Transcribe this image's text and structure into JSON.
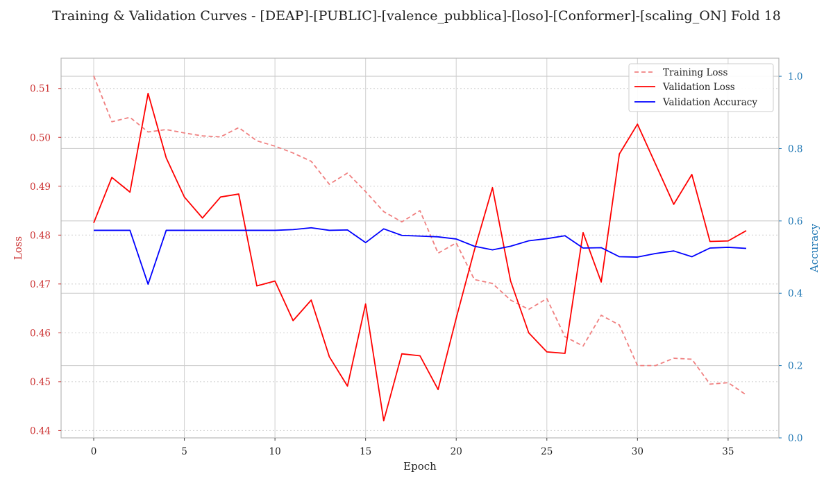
{
  "chart_data": {
    "type": "line",
    "title": "Training & Validation Curves - [DEAP]-[PUBLIC]-[valence_pubblica]-[loso]-[Conformer]-[scaling_ON] Fold 18",
    "xlabel": "Epoch",
    "ylabel_left": "Loss",
    "ylabel_right": "Accuracy",
    "xlim": [
      -1.8,
      37.8
    ],
    "ylim_left": [
      0.4385,
      0.5162
    ],
    "ylim_right": [
      0.0,
      1.05
    ],
    "x_ticks": [
      0,
      5,
      10,
      15,
      20,
      25,
      30,
      35
    ],
    "y_ticks_left": [
      0.44,
      0.45,
      0.46,
      0.47,
      0.48,
      0.49,
      0.5,
      0.51
    ],
    "y_ticks_right": [
      0.0,
      0.2,
      0.4,
      0.6,
      0.8,
      1.0
    ],
    "grid": true,
    "legend_position": "top-right",
    "colors": {
      "training_loss": "#f08080",
      "validation_loss": "#ff0000",
      "validation_accuracy": "#0000ff",
      "left_axis": "#cc3333",
      "right_axis": "#1f77b4"
    },
    "x": [
      0,
      1,
      2,
      3,
      4,
      5,
      6,
      7,
      8,
      9,
      10,
      11,
      12,
      13,
      14,
      15,
      16,
      17,
      18,
      19,
      20,
      21,
      22,
      23,
      24,
      25,
      26,
      27,
      28,
      29,
      30,
      31,
      32,
      33,
      34,
      35,
      36
    ],
    "series": [
      {
        "name": "Training Loss",
        "axis": "left",
        "style": "dashed",
        "values": [
          0.5126,
          0.5032,
          0.5041,
          0.5011,
          0.5016,
          0.5009,
          0.5003,
          0.5001,
          0.502,
          0.4993,
          0.4982,
          0.4968,
          0.4951,
          0.4904,
          0.4927,
          0.4889,
          0.4848,
          0.4827,
          0.485,
          0.4763,
          0.4784,
          0.4709,
          0.4701,
          0.4667,
          0.4648,
          0.467,
          0.4592,
          0.4573,
          0.4636,
          0.4616,
          0.4533,
          0.4533,
          0.4548,
          0.4546,
          0.4495,
          0.4498,
          0.4473
        ]
      },
      {
        "name": "Validation Loss",
        "axis": "left",
        "style": "solid",
        "values": [
          0.4825,
          0.4918,
          0.4888,
          0.509,
          0.4958,
          0.4878,
          0.4835,
          0.4878,
          0.4884,
          0.4696,
          0.4706,
          0.4625,
          0.4667,
          0.4551,
          0.4491,
          0.4659,
          0.442,
          0.4557,
          0.4553,
          0.4484,
          0.463,
          0.4769,
          0.4897,
          0.4706,
          0.46,
          0.4561,
          0.4558,
          0.4805,
          0.4704,
          0.4966,
          0.5027,
          0.4945,
          0.4863,
          0.4924,
          0.4787,
          0.4788,
          0.4809
        ]
      },
      {
        "name": "Validation Accuracy",
        "axis": "right",
        "style": "solid",
        "values": [
          0.574,
          0.574,
          0.574,
          0.425,
          0.574,
          0.574,
          0.574,
          0.574,
          0.574,
          0.574,
          0.574,
          0.576,
          0.581,
          0.574,
          0.575,
          0.54,
          0.578,
          0.56,
          0.558,
          0.556,
          0.55,
          0.53,
          0.52,
          0.53,
          0.545,
          0.551,
          0.559,
          0.525,
          0.526,
          0.501,
          0.5,
          0.51,
          0.517,
          0.501,
          0.525,
          0.527,
          0.524
        ]
      }
    ]
  }
}
